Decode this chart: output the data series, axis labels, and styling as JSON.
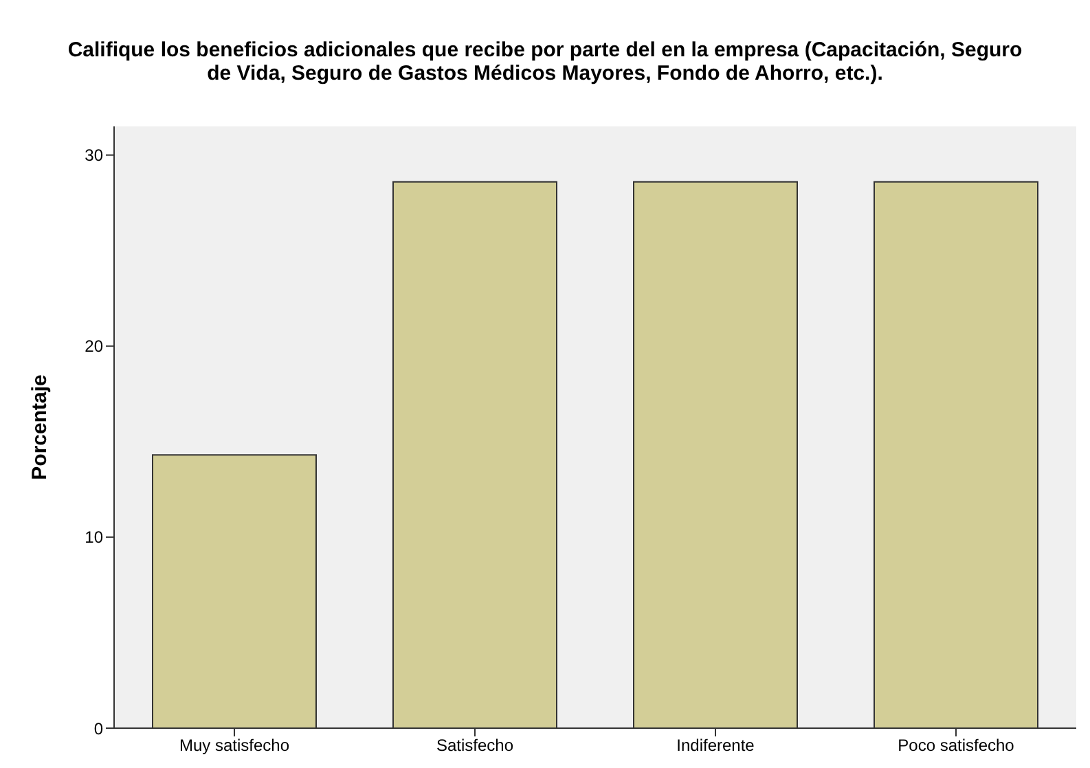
{
  "chart_data": {
    "type": "bar",
    "title": "Califique los beneficios adicionales que recibe por parte del en la empresa (Capacitación, Seguro de Vida, Seguro de Gastos Médicos Mayores, Fondo de Ahorro, etc.).",
    "ylabel": "Porcentaje",
    "categories": [
      "Muy satisfecho",
      "Satisfecho",
      "Indiferente",
      "Poco satisfecho"
    ],
    "values": [
      14.3,
      28.6,
      28.6,
      28.6
    ],
    "color": "#d3ce97",
    "ylim": [
      0,
      31.5
    ],
    "yticks": [
      0,
      10,
      20,
      30
    ],
    "legend": false
  }
}
